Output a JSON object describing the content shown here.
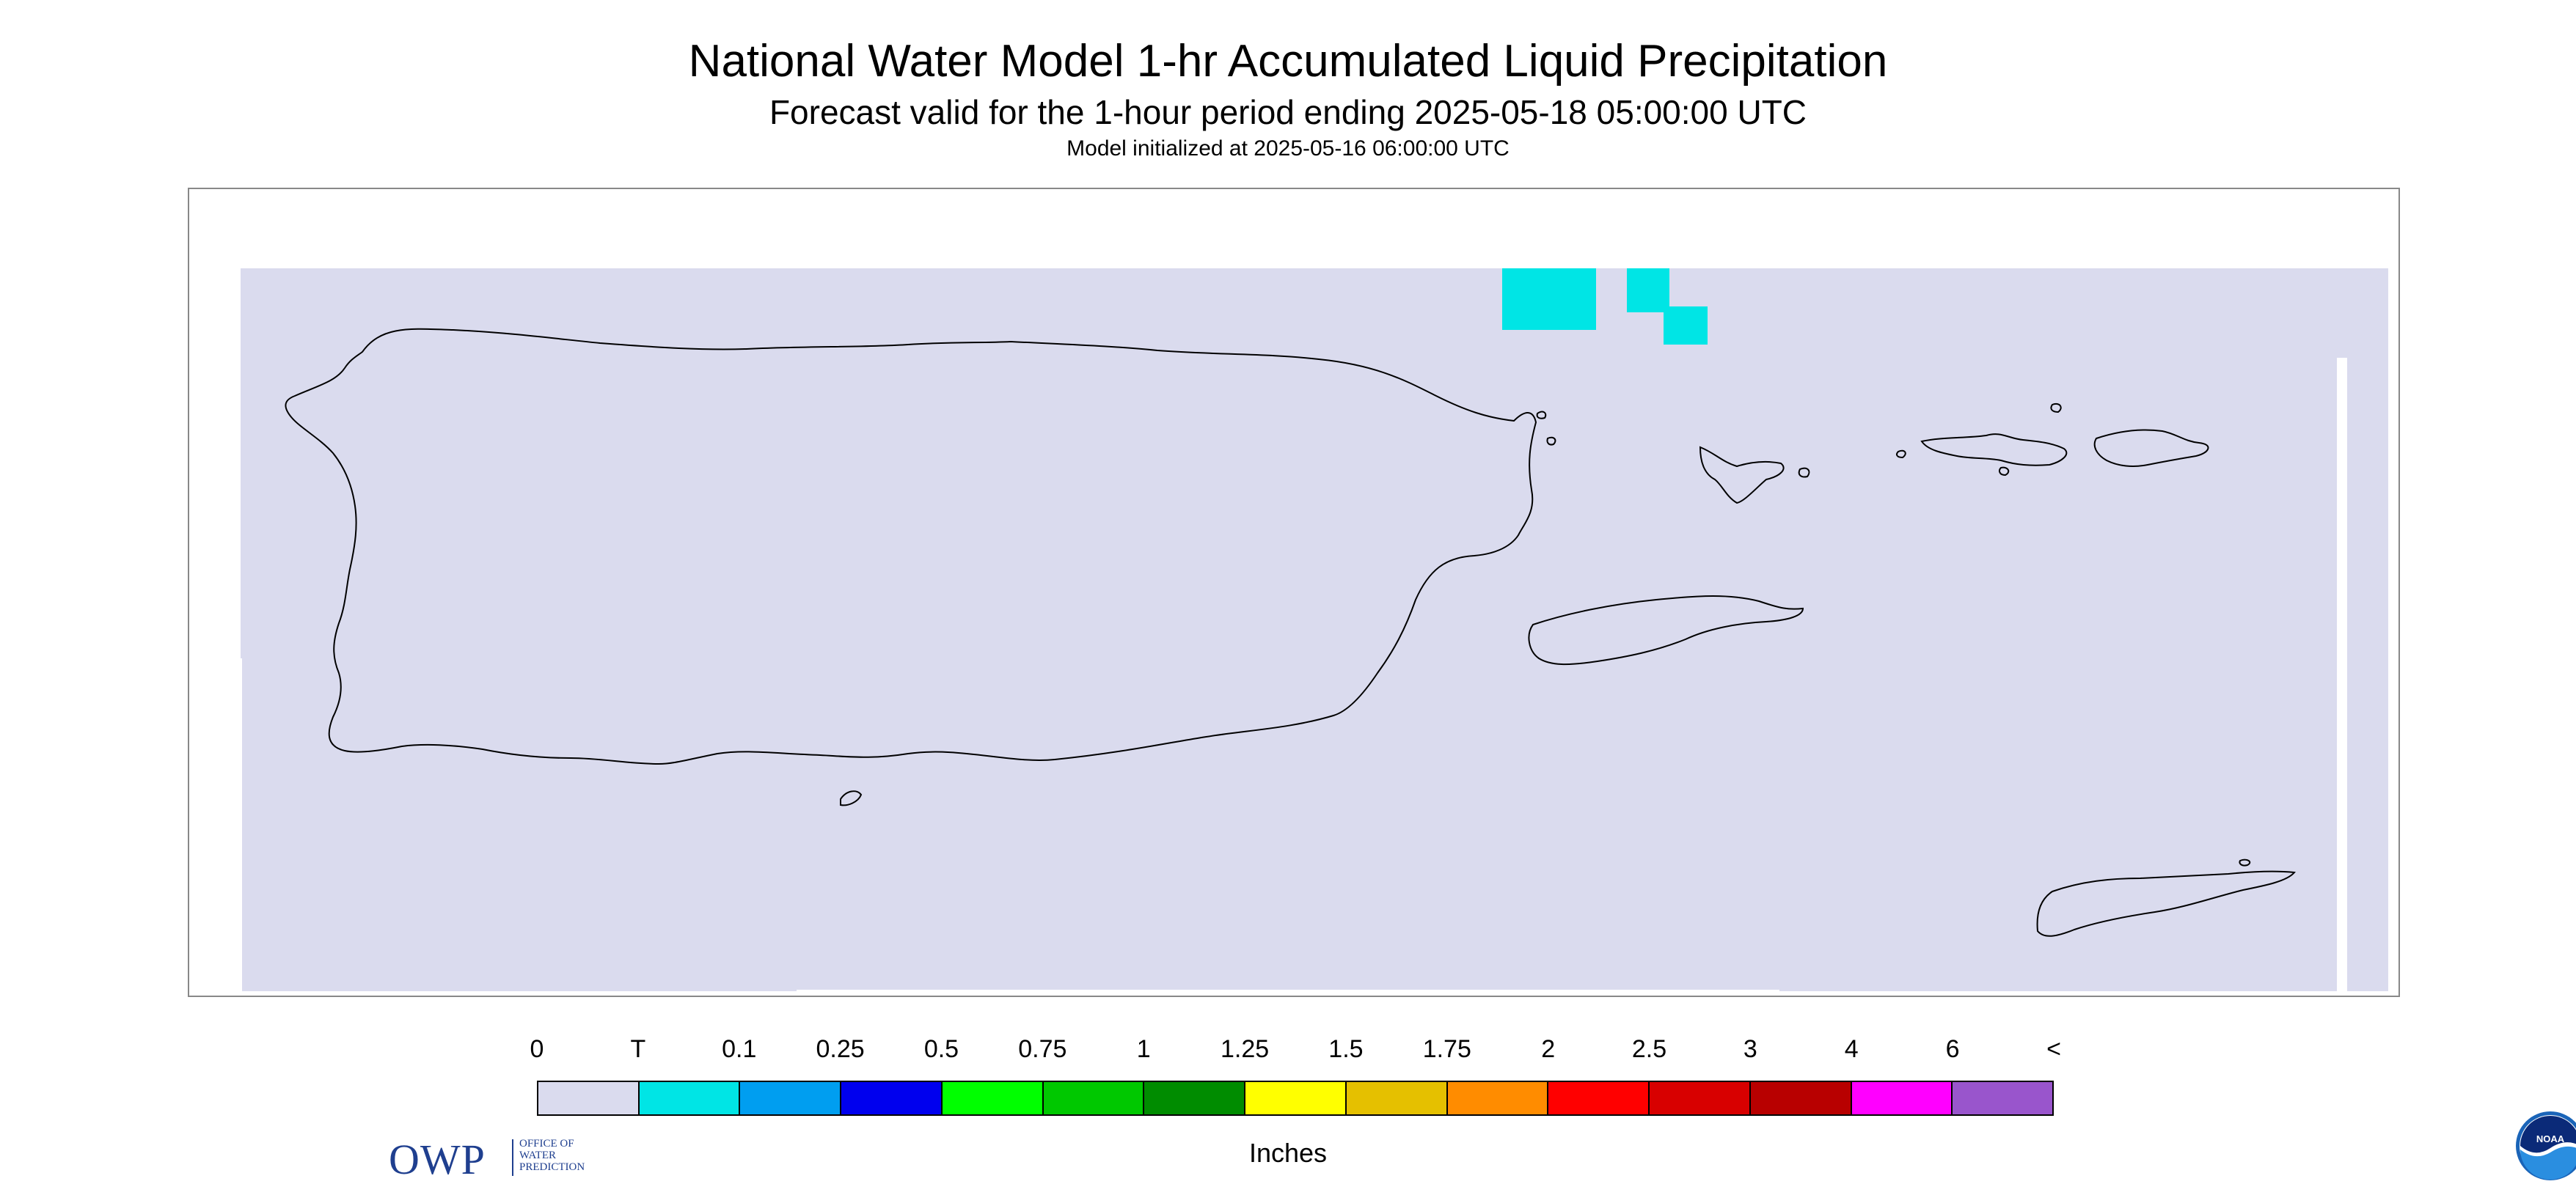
{
  "title": "National Water Model 1-hr Accumulated Liquid Precipitation",
  "subtitle": "Forecast valid for the 1-hour period ending 2025-05-18 05:00:00 UTC",
  "init_line": "Model initialized at 2025-05-16 06:00:00 UTC",
  "map": {
    "background_color": "#dadbee",
    "coastline_color": "#000000",
    "regions": [
      "Puerto Rico",
      "Vieques",
      "Culebra",
      "U.S. Virgin Islands (St. Thomas, St. John)",
      "St. Croix"
    ],
    "precip_cells": [
      {
        "category": "T",
        "color": "#00e5e5"
      },
      {
        "category": "T",
        "color": "#00e5e5"
      },
      {
        "category": "T",
        "color": "#00e5e5"
      }
    ]
  },
  "logos": {
    "owp_big": "OWP",
    "owp_small": [
      "OFFICE OF",
      "WATER",
      "PREDICTION"
    ],
    "noaa": "NOAA"
  },
  "legend": {
    "labels": [
      "0",
      "T",
      "0.1",
      "0.25",
      "0.5",
      "0.75",
      "1",
      "1.25",
      "1.5",
      "1.75",
      "2",
      "2.5",
      "3",
      "4",
      "6",
      "<"
    ],
    "colors": [
      "#dadbee",
      "#00e5e5",
      "#009ef0",
      "#0000ee",
      "#00ff00",
      "#00c800",
      "#008c00",
      "#ffff00",
      "#e5c000",
      "#ff8c00",
      "#ff0000",
      "#d80000",
      "#b80000",
      "#ff00ff",
      "#9955cc"
    ],
    "units": "Inches"
  }
}
